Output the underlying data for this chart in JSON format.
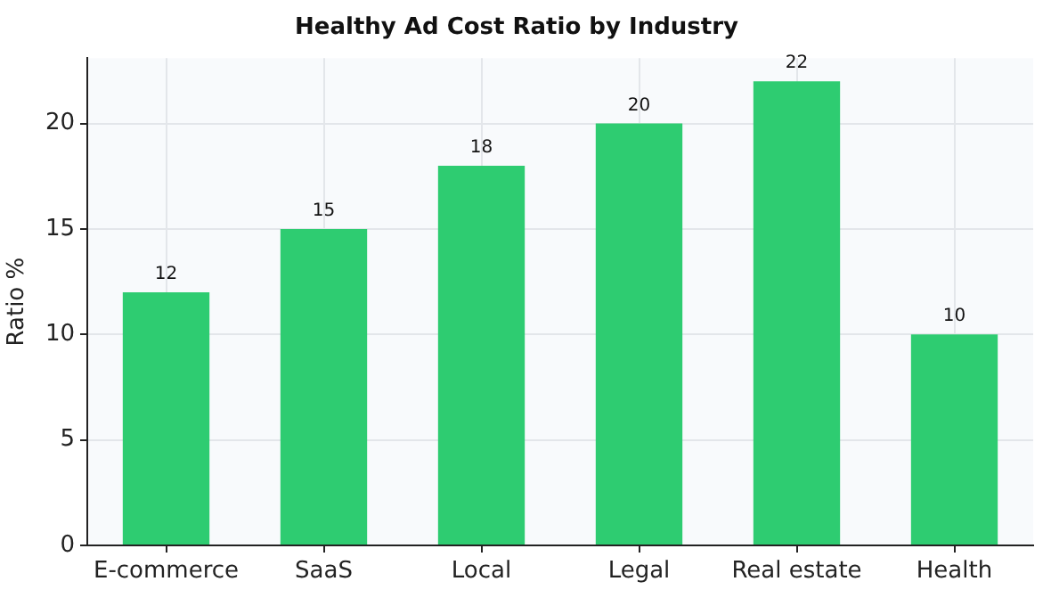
{
  "chart_data": {
    "type": "bar",
    "title": "Healthy Ad Cost Ratio by Industry",
    "ylabel": "Ratio %",
    "categories": [
      "E-commerce",
      "SaaS",
      "Local",
      "Legal",
      "Real estate",
      "Health"
    ],
    "values": [
      12,
      15,
      18,
      20,
      22,
      10
    ],
    "color": "#2ecc71",
    "ylim": [
      0,
      23.1
    ],
    "yticks": [
      0,
      5,
      10,
      15,
      20
    ],
    "grid": true,
    "data_labels": true
  }
}
